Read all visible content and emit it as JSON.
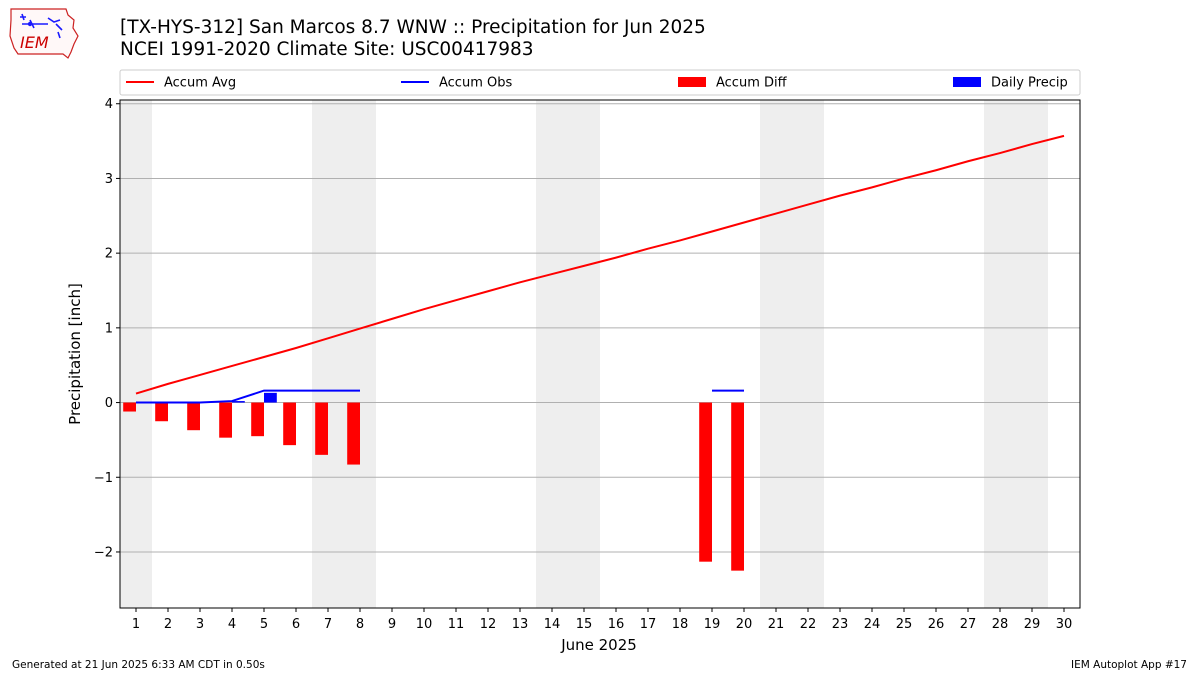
{
  "header": {
    "title_line1": "[TX-HYS-312] San Marcos 8.7 WNW :: Precipitation for Jun 2025",
    "title_line2": "NCEI 1991-2020 Climate Site: USC00417983"
  },
  "logo": {
    "text": "IEM",
    "colors": {
      "border": "#cc2222",
      "text": "#cc0000",
      "glyph": "#1a1aff"
    }
  },
  "footer": {
    "generated": "Generated at 21 Jun 2025 6:33 AM CDT in 0.50s",
    "app": "IEM Autoplot App #17"
  },
  "chart_data": {
    "type": "bar",
    "xlabel": "June 2025",
    "ylabel": "Precipitation [inch]",
    "xlim": [
      0.5,
      30.5
    ],
    "ylim": [
      -2.75,
      4.05
    ],
    "x_ticks": [
      1,
      2,
      3,
      4,
      5,
      6,
      7,
      8,
      9,
      10,
      11,
      12,
      13,
      14,
      15,
      16,
      17,
      18,
      19,
      20,
      21,
      22,
      23,
      24,
      25,
      26,
      27,
      28,
      29,
      30
    ],
    "y_ticks": [
      -2,
      -1,
      0,
      1,
      2,
      3,
      4
    ],
    "y_tick_labels": [
      "−2",
      "−1",
      "0",
      "1",
      "2",
      "3",
      "4"
    ],
    "grid": "horizontal",
    "legend": "top, above plot",
    "weekend_shading": [
      [
        0.5,
        1.5
      ],
      [
        6.5,
        8.5
      ],
      [
        13.5,
        15.5
      ],
      [
        20.5,
        22.5
      ],
      [
        27.5,
        29.5
      ]
    ],
    "colors": {
      "avg": "#ff0000",
      "obs": "#0000ff",
      "diff": "#ff0000",
      "daily": "#0000ff",
      "weekend": "#eeeeee",
      "grid": "#b0b0b0"
    },
    "series": [
      {
        "name": "Accum Avg",
        "kind": "line",
        "x": [
          1,
          2,
          3,
          4,
          5,
          6,
          7,
          8,
          9,
          10,
          11,
          12,
          13,
          14,
          15,
          16,
          17,
          18,
          19,
          20,
          21,
          22,
          23,
          24,
          25,
          26,
          27,
          28,
          29,
          30
        ],
        "values": [
          0.12,
          0.25,
          0.37,
          0.49,
          0.61,
          0.73,
          0.86,
          0.99,
          1.12,
          1.25,
          1.37,
          1.49,
          1.61,
          1.72,
          1.83,
          1.94,
          2.06,
          2.17,
          2.29,
          2.41,
          2.53,
          2.65,
          2.77,
          2.88,
          3.0,
          3.11,
          3.23,
          3.34,
          3.46,
          3.57
        ]
      },
      {
        "name": "Accum Obs",
        "kind": "line",
        "x": [
          1,
          2,
          3,
          4,
          5,
          6,
          7,
          8
        ],
        "values": [
          0.0,
          0.0,
          0.0,
          0.02,
          0.16,
          0.16,
          0.16,
          0.16
        ],
        "extra_segment": {
          "x": [
            19,
            20
          ],
          "values": [
            0.16,
            0.16
          ]
        }
      },
      {
        "name": "Accum Diff",
        "kind": "bar",
        "x": [
          1,
          2,
          3,
          4,
          5,
          6,
          7,
          8,
          19,
          20
        ],
        "values": [
          -0.12,
          -0.25,
          -0.37,
          -0.47,
          -0.45,
          -0.57,
          -0.7,
          -0.83,
          -2.13,
          -2.25
        ]
      },
      {
        "name": "Daily Precip",
        "kind": "bar",
        "x": [
          4,
          5
        ],
        "values": [
          0.02,
          0.13
        ]
      }
    ]
  }
}
